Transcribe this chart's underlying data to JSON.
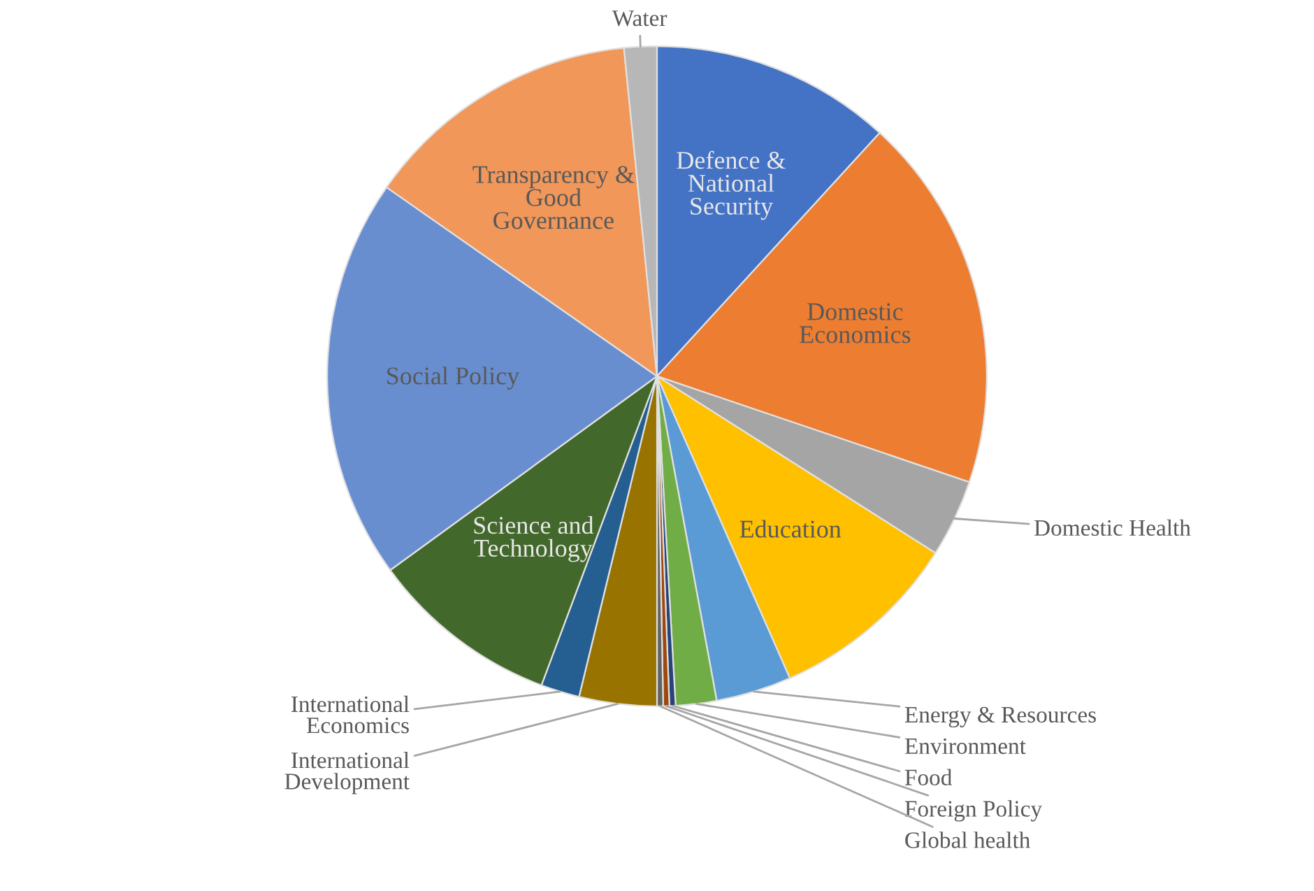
{
  "chart_data": {
    "type": "pie",
    "categories": [
      "Defence & National Security",
      "Domestic Economics",
      "Domestic Health",
      "Education",
      "Energy & Resources",
      "Environment",
      "Food",
      "Foreign Policy",
      "Global health",
      "International Development",
      "International Economics",
      "Science and Technology",
      "Social Policy",
      "Transparency & Good Governance",
      "Water"
    ],
    "values": [
      11.8,
      18.4,
      3.8,
      9.4,
      3.7,
      2.0,
      0.3,
      0.3,
      0.3,
      3.8,
      1.9,
      9.3,
      19.7,
      13.7,
      1.6
    ],
    "colors": [
      "#4472c4",
      "#ed7d31",
      "#a5a5a5",
      "#ffc000",
      "#5b9bd5",
      "#70ad47",
      "#264478",
      "#9e480e",
      "#636363",
      "#997300",
      "#255e91",
      "#43682b",
      "#698ed0",
      "#f1975a",
      "#b7b7b7"
    ],
    "legend": false
  }
}
